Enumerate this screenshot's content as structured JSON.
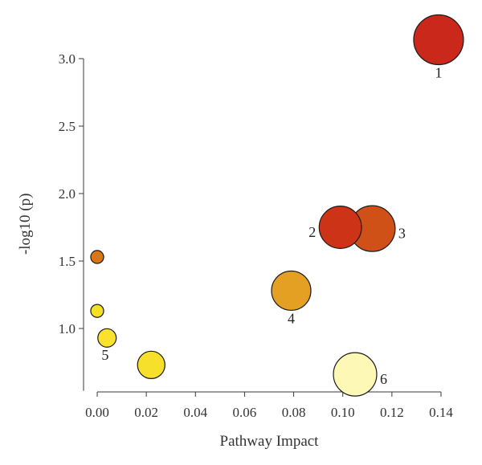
{
  "chart_data": {
    "type": "scatter",
    "title": "",
    "xlabel": "Pathway Impact",
    "ylabel": "-log10 (p)",
    "xlim": [
      -0.005,
      0.145
    ],
    "ylim": [
      0.55,
      3.08
    ],
    "grid": false,
    "xticks": [
      0.0,
      0.02,
      0.04,
      0.06,
      0.08,
      0.1,
      0.12,
      0.14
    ],
    "xtick_labels": [
      "0.00",
      "0.02",
      "0.04",
      "0.06",
      "0.08",
      "0.10",
      "0.12",
      "0.14"
    ],
    "yticks": [
      1.0,
      1.5,
      2.0,
      2.5,
      3.0
    ],
    "ytick_labels": [
      "1.0",
      "1.5",
      "2.0",
      "2.5",
      "3.0"
    ],
    "points": [
      {
        "x": 0.139,
        "y": 3.14,
        "size": 1.0,
        "color": "#c9281b",
        "label": "1"
      },
      {
        "x": 0.099,
        "y": 1.75,
        "size": 0.85,
        "color": "#cc3317",
        "label": "2"
      },
      {
        "x": 0.112,
        "y": 1.74,
        "size": 0.92,
        "color": "#d05117",
        "label": "3"
      },
      {
        "x": 0.079,
        "y": 1.28,
        "size": 0.79,
        "color": "#e4a022",
        "label": "4"
      },
      {
        "x": 0.004,
        "y": 0.93,
        "size": 0.37,
        "color": "#f9e22e",
        "label": "5"
      },
      {
        "x": 0.105,
        "y": 0.66,
        "size": 0.87,
        "color": "#fdf8b6",
        "label": "6"
      },
      {
        "x": 0.0,
        "y": 1.53,
        "size": 0.26,
        "color": "#d97716",
        "label": ""
      },
      {
        "x": 0.0,
        "y": 1.13,
        "size": 0.26,
        "color": "#f5e124",
        "label": ""
      },
      {
        "x": 0.022,
        "y": 0.73,
        "size": 0.55,
        "color": "#f7e02c",
        "label": ""
      }
    ]
  }
}
